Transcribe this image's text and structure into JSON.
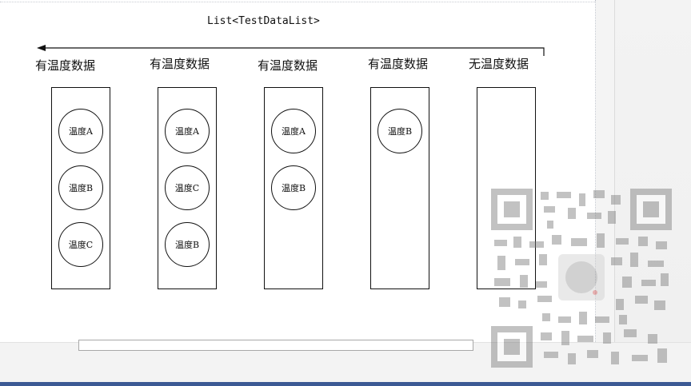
{
  "diagram": {
    "title": "List<TestDataList>",
    "arrow_direction": "left",
    "columns": [
      {
        "label": "有温度数据",
        "items": [
          "温度A",
          "温度B",
          "温度C"
        ]
      },
      {
        "label": "有温度数据",
        "items": [
          "温度A",
          "温度C",
          "温度B"
        ]
      },
      {
        "label": "有温度数据",
        "items": [
          "温度A",
          "温度B"
        ]
      },
      {
        "label": "有温度数据",
        "items": [
          "温度B"
        ]
      },
      {
        "label": "无温度数据",
        "items": []
      }
    ]
  },
  "colors": {
    "stroke": "#111111",
    "taskbar": "#3c5a94",
    "panel": "#f3f3f3"
  },
  "overlay": {
    "icon": "qr-code-icon"
  }
}
